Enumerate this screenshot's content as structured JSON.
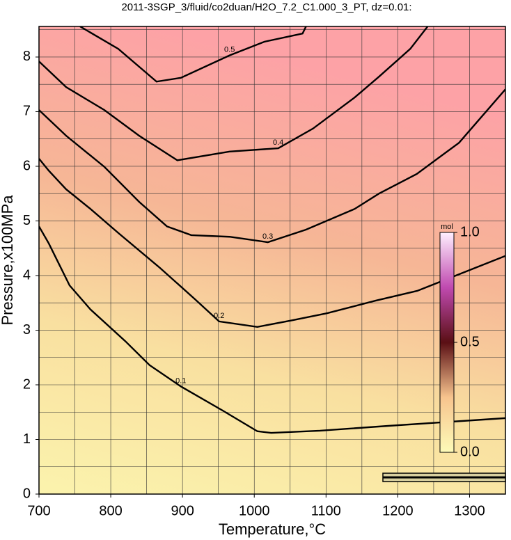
{
  "chart_data": {
    "type": "contour",
    "title": "2011-3SGP_3/fluid/co2duan/H2O_7.2_C1.000_3_PT, dz=0.01:",
    "x_label": "Temperature,°C",
    "y_label": "Pressure,x100MPa",
    "xlim": [
      700,
      1350
    ],
    "ylim": [
      0,
      8.56
    ],
    "xticks": [
      700,
      800,
      900,
      1000,
      1100,
      1200,
      1300
    ],
    "yticks": [
      0,
      1,
      2,
      3,
      4,
      5,
      6,
      7,
      8
    ],
    "xgrid": [
      750,
      800,
      850,
      900,
      950,
      1000,
      1050,
      1100,
      1150,
      1200,
      1250,
      1300
    ],
    "ygrid": [
      0.5,
      1,
      1.5,
      2,
      2.5,
      3,
      3.5,
      4,
      4.5,
      5,
      5.5,
      6,
      6.5,
      7,
      7.5,
      8,
      8.5
    ],
    "line_color": "#000000",
    "series": [
      {
        "name": "0.1",
        "x": [
          700,
          713.6,
          742.6,
          771.7,
          820.2,
          854.1,
          897.7,
          955.8,
          1004.3,
          1023.6,
          1091.5,
          1188.4,
          1350
        ],
        "y": [
          4.9,
          4.59,
          3.82,
          3.38,
          2.8,
          2.36,
          1.97,
          1.53,
          1.15,
          1.12,
          1.16,
          1.25,
          1.39
        ]
      },
      {
        "name": "0.2",
        "x": [
          700,
          713.6,
          737.8,
          771.7,
          810.5,
          868.6,
          917.1,
          951,
          1004.3,
          1052.7,
          1101.2,
          1169,
          1227.1,
          1350
        ],
        "y": [
          6.14,
          5.92,
          5.58,
          5.22,
          4.78,
          4.14,
          3.57,
          3.16,
          3.06,
          3.18,
          3.31,
          3.54,
          3.72,
          4.36
        ]
      },
      {
        "name": "0.3",
        "x": [
          700,
          737.8,
          791.1,
          839.5,
          878.3,
          912.2,
          965.5,
          1018.8,
          1072.1,
          1139.9,
          1173.8,
          1226.5,
          1285.3,
          1350
        ],
        "y": [
          7.03,
          6.56,
          5.99,
          5.35,
          4.9,
          4.74,
          4.71,
          4.61,
          4.84,
          5.22,
          5.5,
          5.86,
          6.43,
          7.41
        ]
      },
      {
        "name": "0.4",
        "x": [
          700,
          737.8,
          791.1,
          839.5,
          892.8,
          965.5,
          1033.4,
          1081.8,
          1139.9,
          1173.8,
          1217.4,
          1241.6
        ],
        "y": [
          7.92,
          7.45,
          7.03,
          6.56,
          6.11,
          6.27,
          6.33,
          6.69,
          7.26,
          7.64,
          8.15,
          8.56
        ]
      },
      {
        "name": "0.5",
        "x": [
          757.2,
          810.5,
          863.8,
          897.7,
          965.5,
          1014,
          1067.3,
          1072.1
        ],
        "y": [
          8.56,
          8.15,
          7.55,
          7.62,
          8.03,
          8.28,
          8.43,
          8.56
        ]
      }
    ],
    "colorbar": {
      "label": "mol",
      "lim": [
        0,
        1
      ],
      "ticks": [
        {
          "value": 0,
          "label": "0.0"
        },
        {
          "value": 0.5,
          "label": "0.5"
        },
        {
          "value": 1,
          "label": "1.0"
        }
      ],
      "colors": [
        "#fdfbb8",
        "#f7c48e",
        "#5a0f14",
        "#c04ab0",
        "#fff0ff"
      ]
    }
  }
}
